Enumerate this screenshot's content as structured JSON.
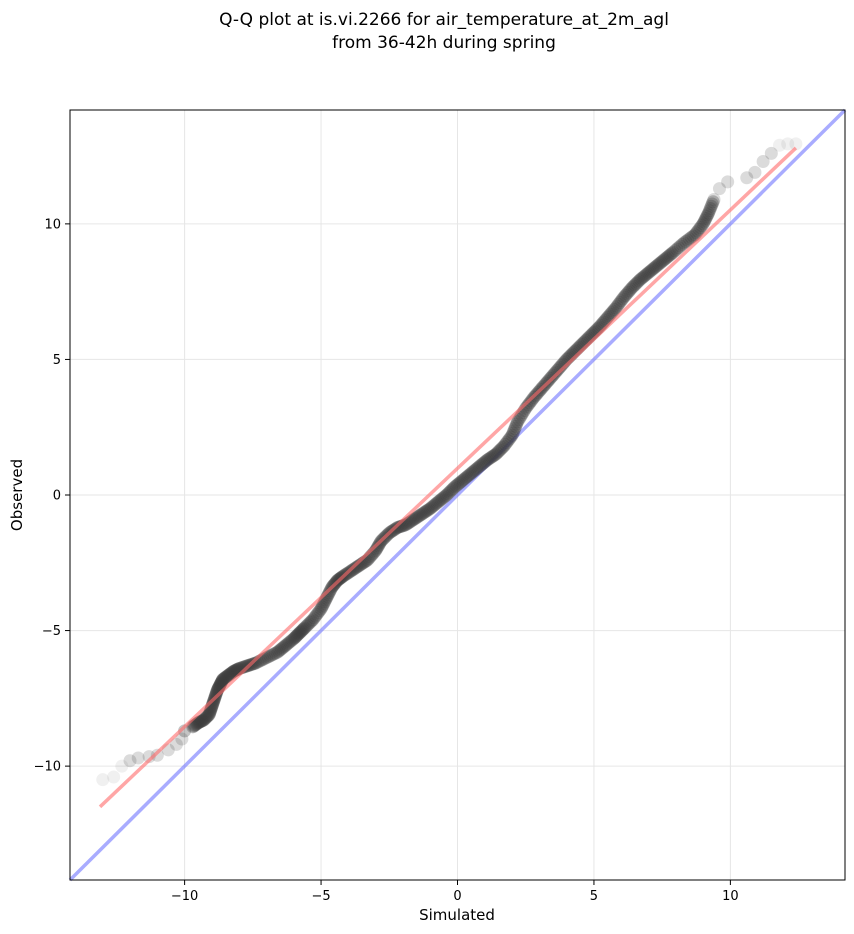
{
  "chart_data": {
    "type": "scatter",
    "title_lines": [
      "Q-Q plot at is.vi.2266 for air_temperature_at_2m_agl",
      "from 36-42h during spring"
    ],
    "xlabel": "Simulated",
    "ylabel": "Observed",
    "xlim": [
      -14.2,
      14.2
    ],
    "ylim": [
      -14.2,
      14.2
    ],
    "xticks": [
      -10,
      -5,
      0,
      5,
      10
    ],
    "yticks": [
      -10,
      -5,
      0,
      5,
      10
    ],
    "tick_labels": [
      "−10",
      "−5",
      "0",
      "5",
      "10"
    ],
    "grid": true,
    "series": [
      {
        "kind": "quantile_points",
        "marker_color": "#3a3a3a",
        "points": [
          [
            -13.0,
            -10.5
          ],
          [
            -12.6,
            -10.4
          ],
          [
            -12.3,
            -10.0
          ],
          [
            -12.0,
            -9.8
          ],
          [
            -11.7,
            -9.7
          ],
          [
            -11.3,
            -9.65
          ],
          [
            -11.0,
            -9.6
          ],
          [
            -10.6,
            -9.4
          ],
          [
            -10.3,
            -9.2
          ],
          [
            -10.1,
            -9.0
          ],
          [
            -10.0,
            -8.7
          ],
          [
            -9.7,
            -8.55
          ],
          [
            -9.5,
            -8.4
          ],
          [
            -9.3,
            -8.3
          ],
          [
            -9.1,
            -8.1
          ],
          [
            -9.0,
            -7.8
          ],
          [
            -8.9,
            -7.5
          ],
          [
            -8.8,
            -7.2
          ],
          [
            -8.7,
            -7.0
          ],
          [
            -8.6,
            -6.8
          ],
          [
            -8.4,
            -6.65
          ],
          [
            -8.2,
            -6.5
          ],
          [
            -8.0,
            -6.4
          ],
          [
            -7.7,
            -6.3
          ],
          [
            -7.4,
            -6.2
          ],
          [
            -7.0,
            -6.0
          ],
          [
            -6.6,
            -5.8
          ],
          [
            -6.3,
            -5.55
          ],
          [
            -6.0,
            -5.3
          ],
          [
            -5.8,
            -5.1
          ],
          [
            -5.6,
            -4.9
          ],
          [
            -5.3,
            -4.6
          ],
          [
            -5.0,
            -4.2
          ],
          [
            -4.8,
            -3.8
          ],
          [
            -4.6,
            -3.4
          ],
          [
            -4.4,
            -3.15
          ],
          [
            -4.2,
            -3.0
          ],
          [
            -3.9,
            -2.8
          ],
          [
            -3.6,
            -2.6
          ],
          [
            -3.3,
            -2.4
          ],
          [
            -3.0,
            -2.05
          ],
          [
            -2.8,
            -1.7
          ],
          [
            -2.5,
            -1.4
          ],
          [
            -2.2,
            -1.2
          ],
          [
            -1.9,
            -1.1
          ],
          [
            -1.6,
            -0.9
          ],
          [
            -1.3,
            -0.7
          ],
          [
            -1.0,
            -0.5
          ],
          [
            -0.7,
            -0.25
          ],
          [
            -0.4,
            0.0
          ],
          [
            -0.1,
            0.3
          ],
          [
            0.2,
            0.55
          ],
          [
            0.5,
            0.8
          ],
          [
            0.8,
            1.05
          ],
          [
            1.1,
            1.3
          ],
          [
            1.4,
            1.5
          ],
          [
            1.7,
            1.8
          ],
          [
            2.0,
            2.2
          ],
          [
            2.2,
            2.7
          ],
          [
            2.5,
            3.2
          ],
          [
            2.8,
            3.6
          ],
          [
            3.1,
            3.95
          ],
          [
            3.4,
            4.3
          ],
          [
            3.7,
            4.65
          ],
          [
            4.0,
            5.0
          ],
          [
            4.3,
            5.3
          ],
          [
            4.6,
            5.6
          ],
          [
            4.9,
            5.9
          ],
          [
            5.2,
            6.2
          ],
          [
            5.5,
            6.55
          ],
          [
            5.8,
            6.9
          ],
          [
            6.1,
            7.3
          ],
          [
            6.4,
            7.65
          ],
          [
            6.7,
            7.95
          ],
          [
            7.0,
            8.2
          ],
          [
            7.3,
            8.45
          ],
          [
            7.6,
            8.7
          ],
          [
            7.9,
            8.95
          ],
          [
            8.3,
            9.3
          ],
          [
            8.7,
            9.6
          ],
          [
            9.0,
            10.0
          ],
          [
            9.2,
            10.4
          ],
          [
            9.4,
            10.9
          ],
          [
            9.6,
            11.3
          ],
          [
            9.9,
            11.55
          ],
          [
            10.6,
            11.7
          ],
          [
            10.9,
            11.9
          ],
          [
            11.2,
            12.3
          ],
          [
            11.5,
            12.6
          ],
          [
            11.8,
            12.9
          ],
          [
            12.1,
            12.95
          ],
          [
            12.4,
            12.95
          ]
        ]
      },
      {
        "kind": "fit_line",
        "color": "#ff6b6b",
        "x": [
          -13.1,
          12.4
        ],
        "y": [
          -11.5,
          12.8
        ]
      },
      {
        "kind": "identity_line",
        "color": "#6f74ff",
        "x": [
          -14.2,
          14.2
        ],
        "y": [
          -14.2,
          14.2
        ]
      }
    ]
  }
}
